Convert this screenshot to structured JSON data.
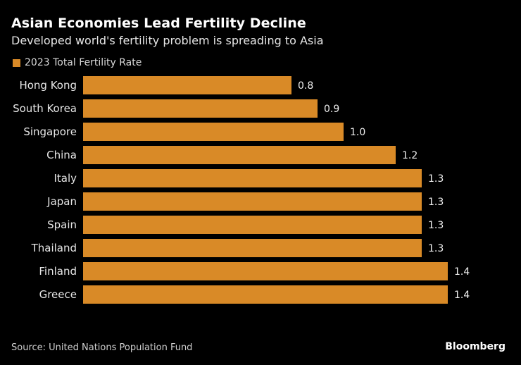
{
  "chart_data": {
    "type": "bar",
    "orientation": "horizontal",
    "title": "Asian Economies Lead Fertility Decline",
    "subtitle": "Developed world's fertility problem is spreading to Asia",
    "legend": [
      {
        "label": "2023 Total Fertility Rate",
        "color": "#d98a27"
      }
    ],
    "legend_position": "top-left",
    "categories": [
      "Hong Kong",
      "South Korea",
      "Singapore",
      "China",
      "Italy",
      "Japan",
      "Spain",
      "Thailand",
      "Finland",
      "Greece"
    ],
    "series": [
      {
        "name": "2023 Total Fertility Rate",
        "values": [
          0.8,
          0.9,
          1.0,
          1.2,
          1.3,
          1.3,
          1.3,
          1.3,
          1.4,
          1.4
        ],
        "color": "#d98a27"
      }
    ],
    "value_labels": [
      "0.8",
      "0.9",
      "1.0",
      "1.2",
      "1.3",
      "1.3",
      "1.3",
      "1.3",
      "1.4",
      "1.4"
    ],
    "xlabel": "",
    "ylabel": "",
    "xlim": [
      0,
      1.4
    ],
    "grid": false,
    "source": "Source: United Nations Population Fund",
    "brand": "Bloomberg"
  }
}
